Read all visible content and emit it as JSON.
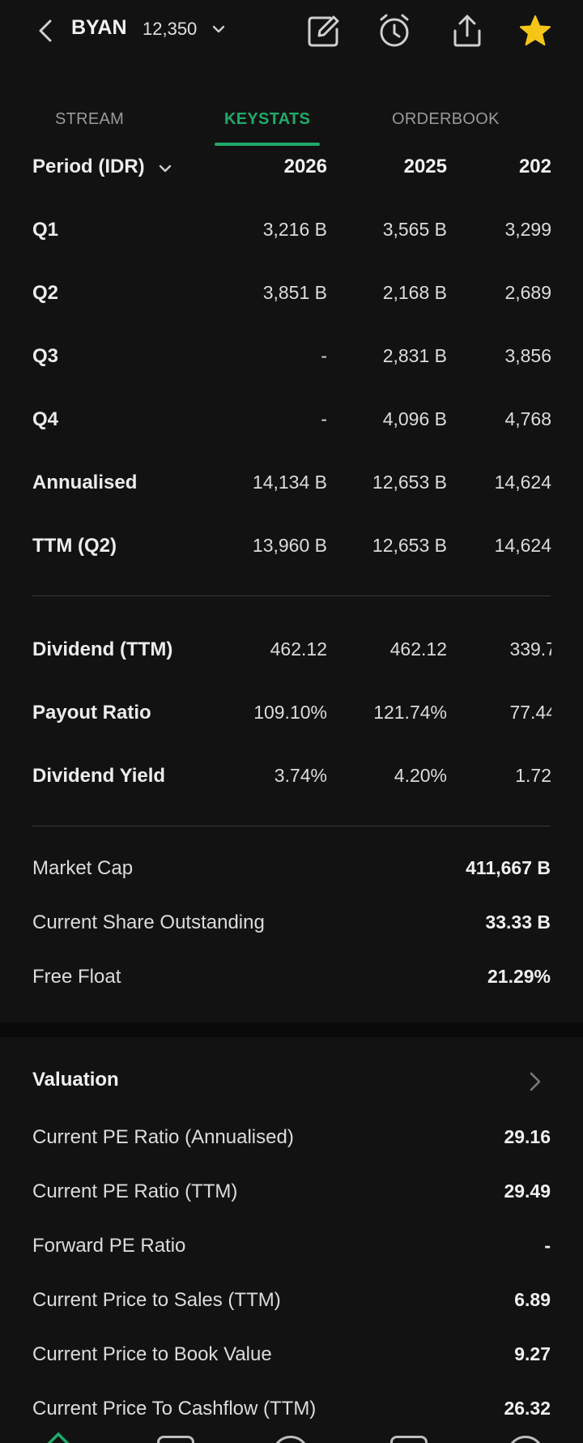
{
  "header": {
    "ticker": "BYAN",
    "price": "12,350",
    "icons": [
      "back-icon",
      "chevron-down-icon",
      "edit-icon",
      "alarm-icon",
      "share-icon",
      "star-icon"
    ],
    "star_color": "#f5c518"
  },
  "tabs": [
    {
      "label": "STREAM",
      "active": false
    },
    {
      "label": "KEYSTATS",
      "active": true
    },
    {
      "label": "ORDERBOOK",
      "active": false
    }
  ],
  "accent_color": "#1faa6a",
  "period_table": {
    "header_label": "Period (IDR)",
    "years": [
      "2026",
      "2025",
      "202"
    ],
    "rows": [
      {
        "label": "Q1",
        "values": [
          "3,216 B",
          "3,565 B",
          "3,299"
        ]
      },
      {
        "label": "Q2",
        "values": [
          "3,851 B",
          "2,168 B",
          "2,689"
        ]
      },
      {
        "label": "Q3",
        "values": [
          "-",
          "2,831 B",
          "3,856"
        ]
      },
      {
        "label": "Q4",
        "values": [
          "-",
          "4,096 B",
          "4,768"
        ]
      },
      {
        "label": "Annualised",
        "values": [
          "14,134 B",
          "12,653 B",
          "14,624"
        ]
      },
      {
        "label": "TTM (Q2)",
        "values": [
          "13,960 B",
          "12,653 B",
          "14,624"
        ]
      }
    ]
  },
  "dividend_table": {
    "rows": [
      {
        "label": "Dividend (TTM)",
        "values": [
          "462.12",
          "462.12",
          "339.7"
        ]
      },
      {
        "label": "Payout Ratio",
        "values": [
          "109.10%",
          "121.74%",
          "77.44"
        ]
      },
      {
        "label": "Dividend Yield",
        "values": [
          "3.74%",
          "4.20%",
          "1.72"
        ]
      }
    ]
  },
  "summary": [
    {
      "label": "Market Cap",
      "value": "411,667 B"
    },
    {
      "label": "Current Share Outstanding",
      "value": "33.33 B"
    },
    {
      "label": "Free Float",
      "value": "21.29%"
    }
  ],
  "valuation": {
    "title": "Valuation",
    "items": [
      {
        "label": "Current PE Ratio (Annualised)",
        "value": "29.16"
      },
      {
        "label": "Current PE Ratio (TTM)",
        "value": "29.49"
      },
      {
        "label": "Forward PE Ratio",
        "value": "-"
      },
      {
        "label": "Current Price to Sales (TTM)",
        "value": "6.89"
      },
      {
        "label": "Current Price to Book Value",
        "value": "9.27"
      },
      {
        "label": "Current Price To Cashflow (TTM)",
        "value": "26.32"
      }
    ]
  }
}
